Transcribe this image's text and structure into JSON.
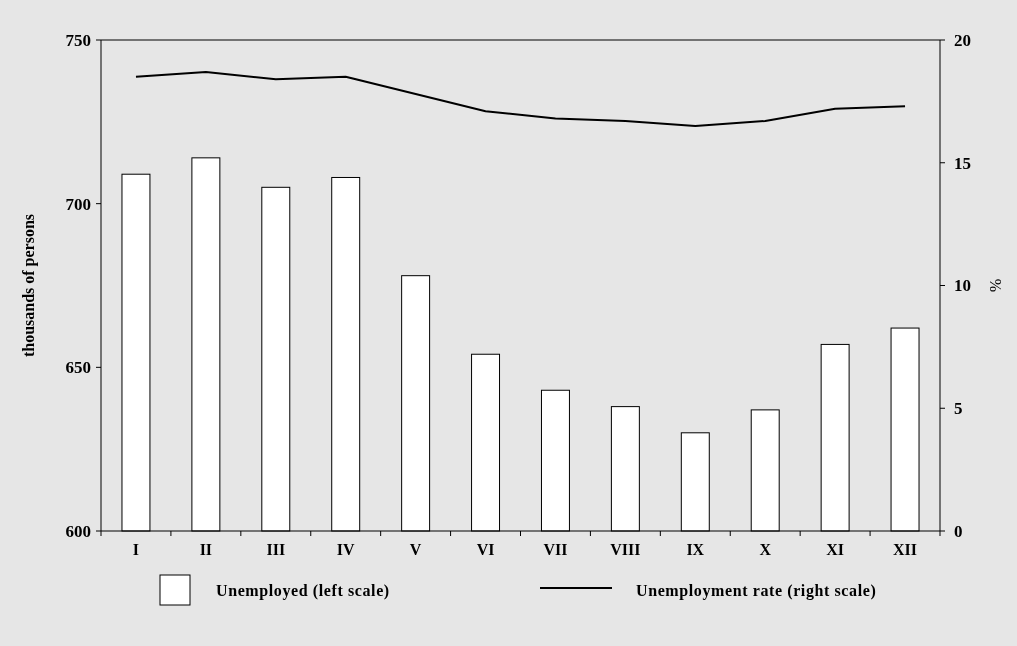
{
  "chart_data": {
    "type": "bar",
    "categories": [
      "I",
      "II",
      "III",
      "IV",
      "V",
      "VI",
      "VII",
      "VIII",
      "IX",
      "X",
      "XI",
      "XII"
    ],
    "series": [
      {
        "name": "Unemployed (left scale)",
        "color": "#ffffff",
        "values": [
          709,
          714,
          705,
          708,
          678,
          654,
          643,
          638,
          630,
          637,
          657,
          662
        ]
      },
      {
        "name": "Unemployment rate (right scale)",
        "type": "line",
        "axis": "y2",
        "color": "#000000",
        "values": [
          18.5,
          18.7,
          18.4,
          18.5,
          17.8,
          17.1,
          16.8,
          16.7,
          16.5,
          16.7,
          17.2,
          17.3
        ]
      }
    ],
    "ylabel": "thousands of persons",
    "y2label": "%",
    "ylim": [
      600,
      750
    ],
    "yticks": [
      600,
      650,
      700,
      750
    ],
    "y2lim": [
      0,
      20
    ],
    "y2ticks": [
      0,
      5,
      10,
      15,
      20
    ],
    "legend": "bottom",
    "grid": false,
    "marker": "none",
    "line_style": "solid"
  }
}
